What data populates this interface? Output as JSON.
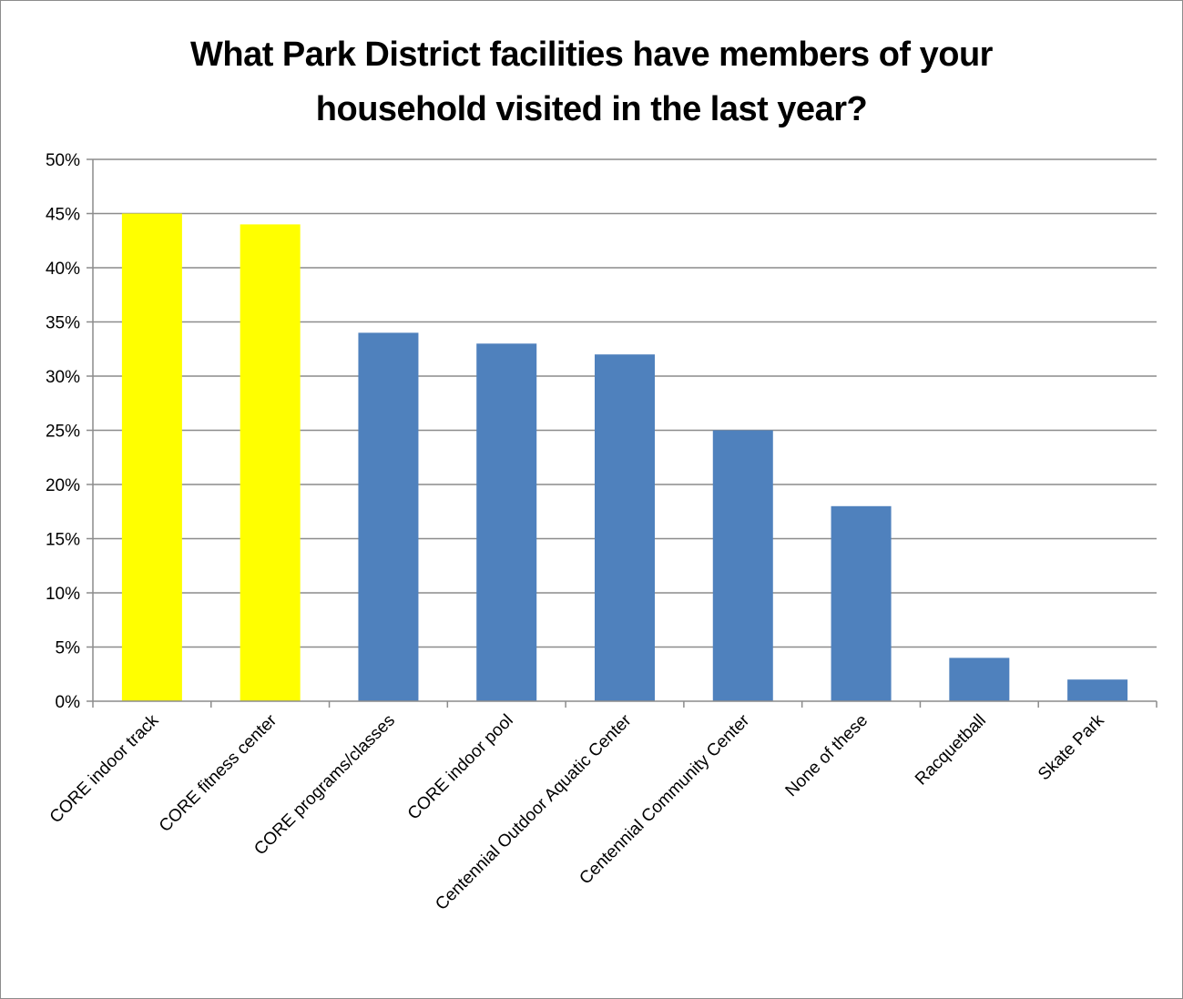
{
  "chart_data": {
    "type": "bar",
    "title_lines": [
      "What Park District facilities have members of your",
      "household visited in the last year?"
    ],
    "categories": [
      "CORE indoor track",
      "CORE fitness center",
      "CORE programs/classes",
      "CORE indoor pool",
      "Centennial Outdoor Aquatic Center",
      "Centennial Community Center",
      "None of these",
      "Racquetball",
      "Skate Park"
    ],
    "values": [
      45,
      44,
      34,
      33,
      32,
      25,
      18,
      4,
      2
    ],
    "bar_colors": [
      "#ffff00",
      "#ffff00",
      "#4f81bd",
      "#4f81bd",
      "#4f81bd",
      "#4f81bd",
      "#4f81bd",
      "#4f81bd",
      "#4f81bd"
    ],
    "ylim": [
      0,
      50
    ],
    "y_ticks": [
      0,
      5,
      10,
      15,
      20,
      25,
      30,
      35,
      40,
      45,
      50
    ],
    "y_tick_labels": [
      "0%",
      "5%",
      "10%",
      "15%",
      "20%",
      "25%",
      "30%",
      "35%",
      "40%",
      "45%",
      "50%"
    ],
    "grid": true,
    "legend": false,
    "xlabel": "",
    "ylabel": ""
  }
}
